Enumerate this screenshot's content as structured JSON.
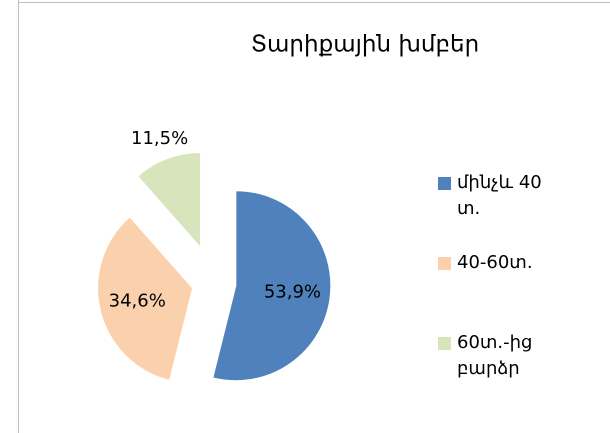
{
  "chart_data": {
    "type": "pie",
    "title": "Տարիքային  խմբեր",
    "categories": [
      "մինչև 40 տ.",
      "40-60տ.",
      "60տ.-ից բարձր"
    ],
    "values": [
      53.9,
      34.6,
      11.5
    ],
    "value_labels": [
      "53,9%",
      "34,6%",
      "11,5%"
    ],
    "colors": [
      "#4f81bd",
      "#fbd0ac",
      "#d7e4bc"
    ],
    "legend": "right"
  }
}
